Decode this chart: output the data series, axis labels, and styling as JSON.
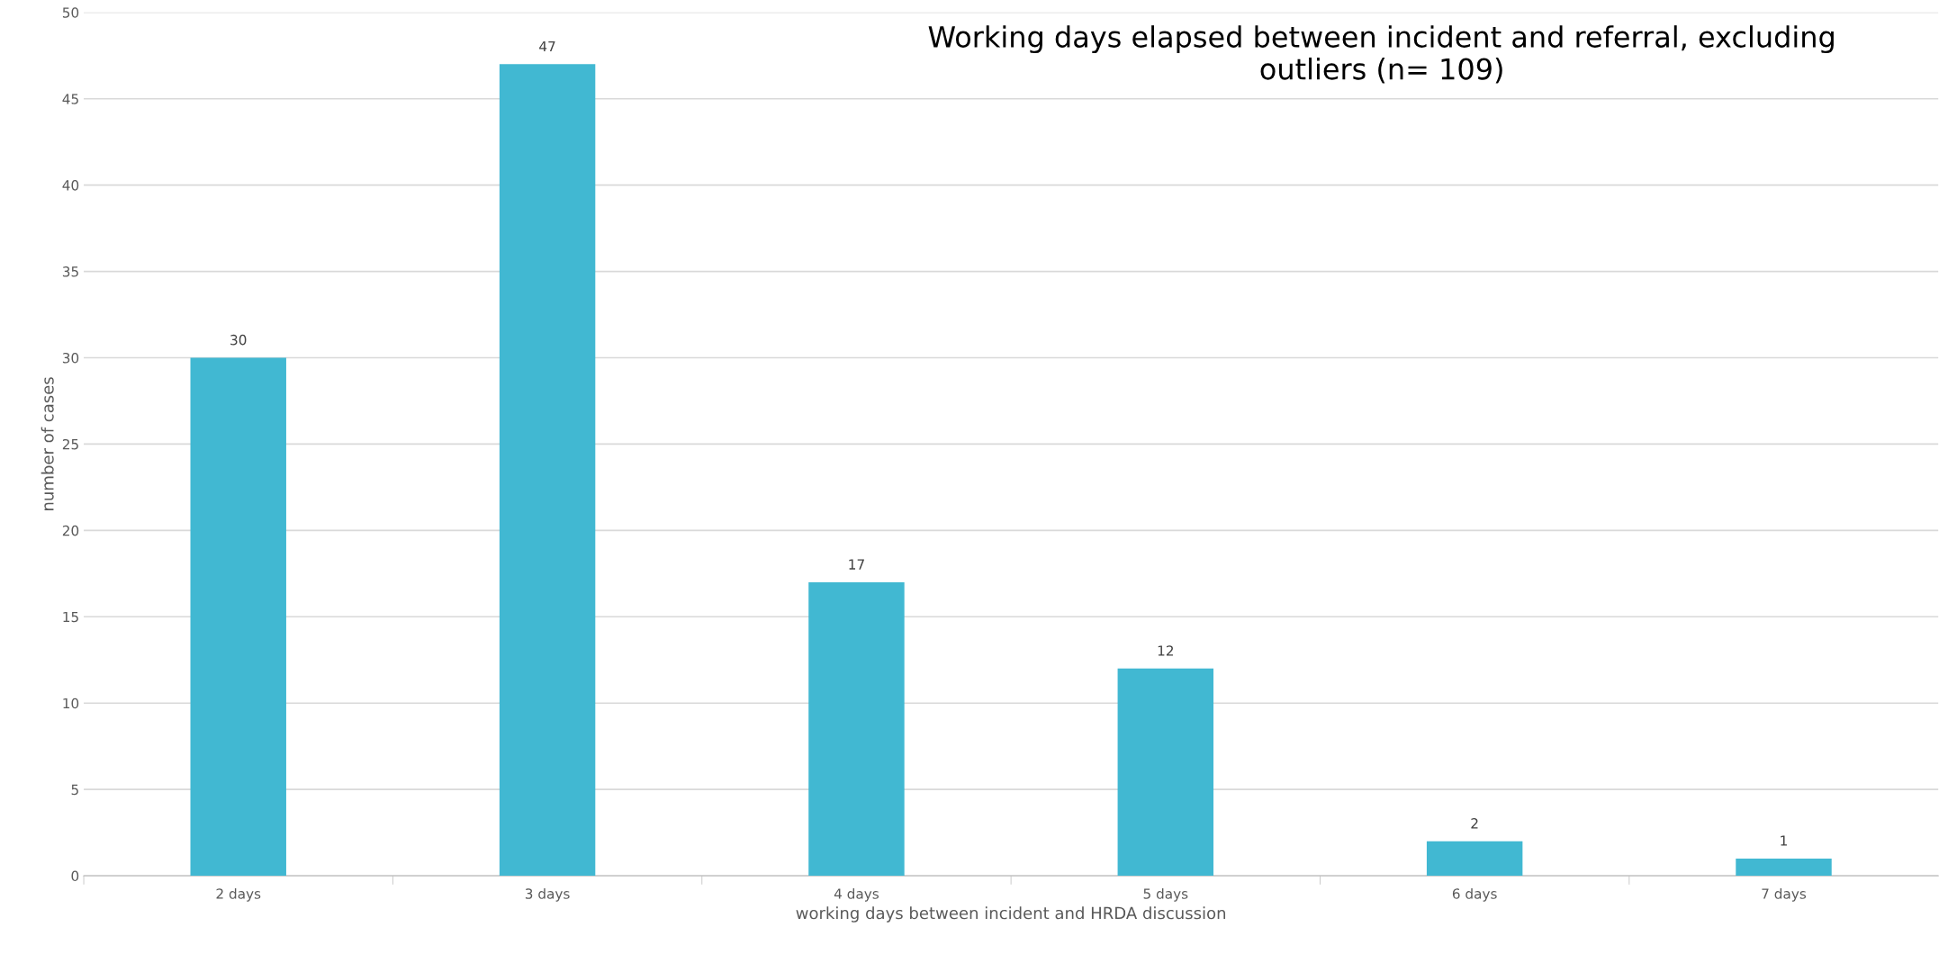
{
  "chart_data": {
    "type": "bar",
    "title": "Working days elapsed between incident and referral, excluding outliers (n= 109)",
    "xlabel": "working days between incident and HRDA discussion",
    "ylabel": "number of cases",
    "categories": [
      "2 days",
      "3 days",
      "4 days",
      "5 days",
      "6 days",
      "7 days"
    ],
    "values": [
      30,
      47,
      17,
      12,
      2,
      1
    ],
    "color": "#41b8d2",
    "ylim": [
      0,
      50
    ],
    "yticks": [
      0,
      5,
      10,
      15,
      20,
      25,
      30,
      35,
      40,
      45,
      50
    ],
    "grid": "y",
    "data_labels": true
  }
}
